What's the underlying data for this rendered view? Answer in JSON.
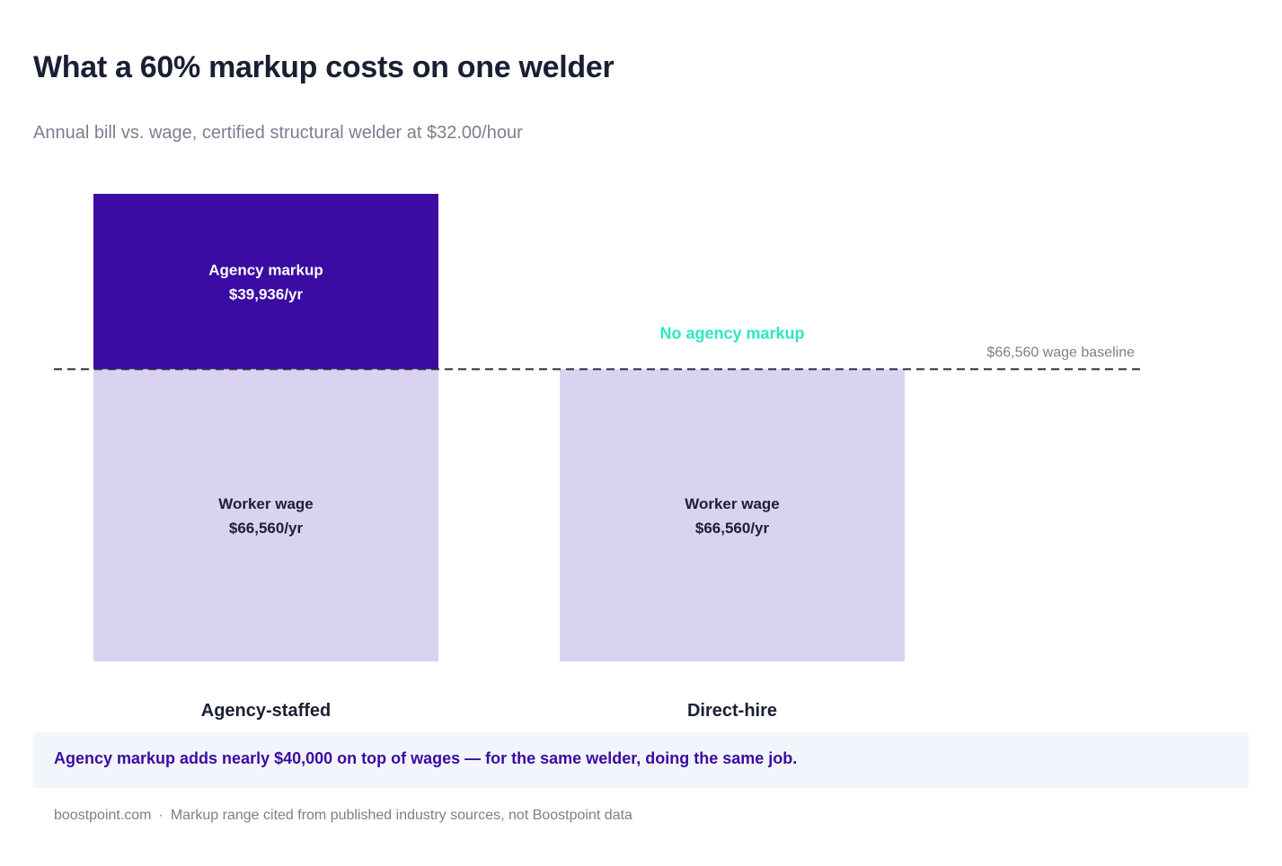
{
  "title": "What a 60% markup costs on one welder",
  "subtitle": "Annual bill vs. wage, certified structural welder at $32.00/hour",
  "colors": {
    "markup": "#3a0ca3",
    "wage": "#d9d3f0",
    "no_markup": "#2ee6c1",
    "dark_text": "#1b1f33",
    "muted_text": "#7b7f8e"
  },
  "chart_data": {
    "type": "bar",
    "stacked": true,
    "categories": [
      "Agency-staffed",
      "Direct-hire"
    ],
    "series": [
      {
        "name": "Worker wage",
        "values": [
          66560,
          66560
        ],
        "labels": [
          "$66,560/yr",
          "$66,560/yr"
        ]
      },
      {
        "name": "Agency markup",
        "values": [
          39936,
          0
        ],
        "labels": [
          "$39,936/yr",
          ""
        ]
      }
    ],
    "annotations": {
      "no_markup_label": "No agency markup",
      "baseline_value": 66560,
      "baseline_label": "$66,560 wage baseline"
    },
    "ylim": [
      0,
      106496
    ],
    "grid": false,
    "legend": "none"
  },
  "callout": "Agency markup adds nearly $40,000 on top of wages — for the same welder, doing the same job.",
  "footer": {
    "site": "boostpoint.com",
    "separator": "·",
    "note": "Markup range cited from published industry sources, not Boostpoint data"
  }
}
